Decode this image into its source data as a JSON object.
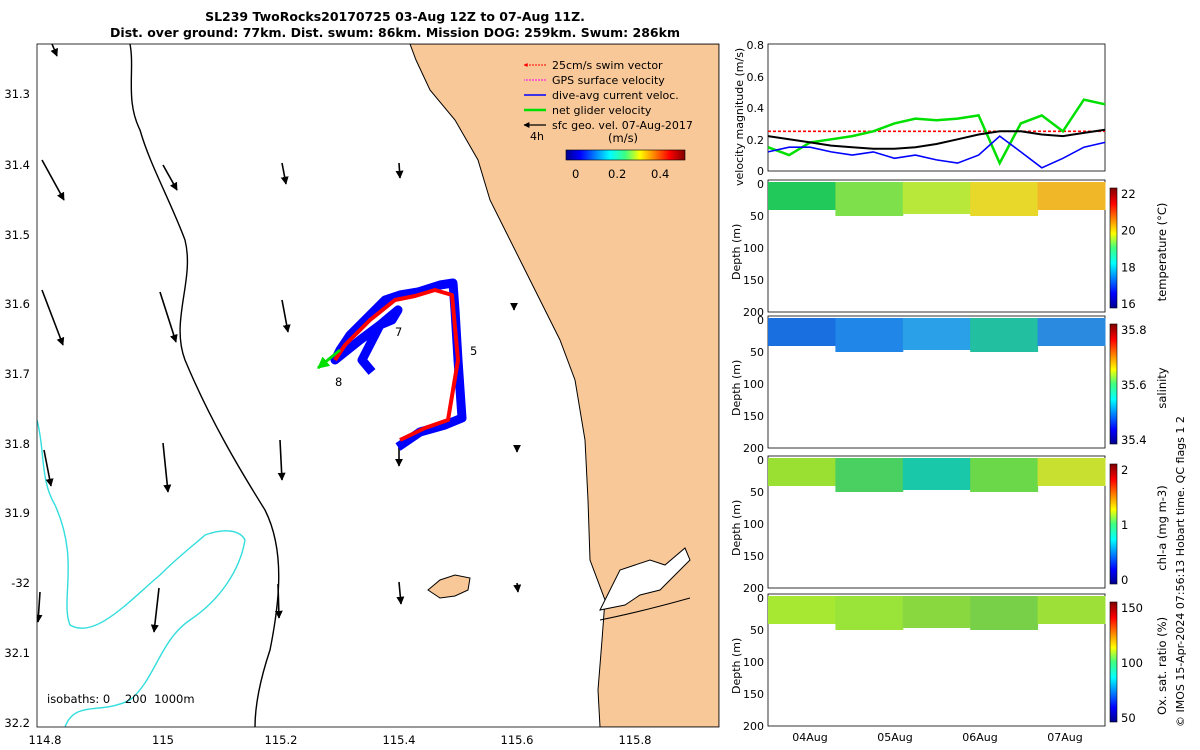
{
  "title": {
    "line1": "SL239 TwoRocks20170725 03-Aug 12Z to 07-Aug 11Z.",
    "line2": "Dist. over ground: 77km. Dist. swum: 86km. Mission DOG: 259km. Swum: 286km"
  },
  "legend": {
    "items": [
      {
        "label": "25cm/s swim vector",
        "color": "#ff0000"
      },
      {
        "label": "GPS surface velocity",
        "color": "#ff00ff"
      },
      {
        "label": "dive-avg current veloc.",
        "color": "#0000ff"
      },
      {
        "label": "net glider velocity",
        "color": "#00e000"
      },
      {
        "label": "sfc geo. vel. 07-Aug-2017",
        "color": "#000000"
      }
    ],
    "interval_label": "4h"
  },
  "colorbar": {
    "unit": "(m/s)",
    "ticks": [
      "0",
      "0.2",
      "0.4"
    ]
  },
  "isobaths": {
    "label": "isobaths: 0    200  1000m"
  },
  "map": {
    "lon_ticks": [
      "114.8",
      "115",
      "115.2",
      "115.4",
      "115.6",
      "115.8"
    ],
    "lat_ticks": [
      "31.3",
      "31.4",
      "31.5",
      "31.6",
      "31.7",
      "31.8",
      "31.9",
      "-32",
      "32.1",
      "32.2"
    ],
    "day_labels": [
      "5",
      "7",
      "8"
    ],
    "land_color": "#f9c898"
  },
  "credit": "© IMOS 15-Apr-2024 07:56:13 Hobart time. QC flags 1  2",
  "chart_data": [
    {
      "type": "line",
      "title": "",
      "ylabel": "velocity magnitude (m/s)",
      "ylim": [
        0,
        0.8
      ],
      "yticks": [
        "0",
        "0.2",
        "0.4",
        "0.6",
        "0.8"
      ],
      "x_days": [
        0,
        0.25,
        0.5,
        0.75,
        1,
        1.25,
        1.5,
        1.75,
        2,
        2.25,
        2.5,
        2.75,
        3,
        3.25,
        3.5,
        3.75,
        4
      ],
      "series": [
        {
          "name": "swim",
          "color": "#ff0000",
          "values": [
            0.25,
            0.25,
            0.25,
            0.25,
            0.25,
            0.25,
            0.25,
            0.25,
            0.25,
            0.25,
            0.25,
            0.25,
            0.25,
            0.25,
            0.25,
            0.25,
            0.25
          ]
        },
        {
          "name": "net glider",
          "color": "#00e000",
          "values": [
            0.15,
            0.1,
            0.18,
            0.2,
            0.22,
            0.25,
            0.3,
            0.33,
            0.32,
            0.33,
            0.35,
            0.05,
            0.3,
            0.35,
            0.25,
            0.45,
            0.42
          ]
        },
        {
          "name": "dive-avg current",
          "color": "#0000ff",
          "values": [
            0.12,
            0.15,
            0.15,
            0.12,
            0.1,
            0.12,
            0.08,
            0.1,
            0.07,
            0.05,
            0.1,
            0.22,
            0.12,
            0.02,
            0.08,
            0.15,
            0.18
          ]
        },
        {
          "name": "sfc geo",
          "color": "#000000",
          "values": [
            0.22,
            0.2,
            0.18,
            0.16,
            0.15,
            0.14,
            0.14,
            0.15,
            0.17,
            0.2,
            0.23,
            0.25,
            0.25,
            0.23,
            0.22,
            0.24,
            0.26
          ]
        }
      ]
    },
    {
      "type": "heatmap",
      "ylabel": "Depth (m)",
      "cbar_label": "temperature (°C)",
      "cbar_ticks": [
        "16",
        "18",
        "20",
        "22"
      ],
      "yticks": [
        "0",
        "50",
        "100",
        "150",
        "200"
      ],
      "ylim": [
        200,
        0
      ]
    },
    {
      "type": "heatmap",
      "ylabel": "Depth (m)",
      "cbar_label": "salinity",
      "cbar_ticks": [
        "35.4",
        "35.6",
        "35.8"
      ],
      "yticks": [
        "0",
        "50",
        "100",
        "150",
        "200"
      ],
      "ylim": [
        200,
        0
      ]
    },
    {
      "type": "heatmap",
      "ylabel": "Depth (m)",
      "cbar_label": "chl-a (mg m-3)",
      "cbar_ticks": [
        "0",
        "1",
        "2"
      ],
      "yticks": [
        "0",
        "50",
        "100",
        "150",
        "200"
      ],
      "ylim": [
        200,
        0
      ]
    },
    {
      "type": "heatmap",
      "ylabel": "Depth (m)",
      "cbar_label": "Ox. sat. ratio (%)",
      "cbar_ticks": [
        "50",
        "100",
        "150"
      ],
      "yticks": [
        "0",
        "50",
        "100",
        "150",
        "200"
      ],
      "ylim": [
        200,
        0
      ],
      "xticks": [
        "04Aug",
        "05Aug",
        "06Aug",
        "07Aug"
      ]
    }
  ]
}
